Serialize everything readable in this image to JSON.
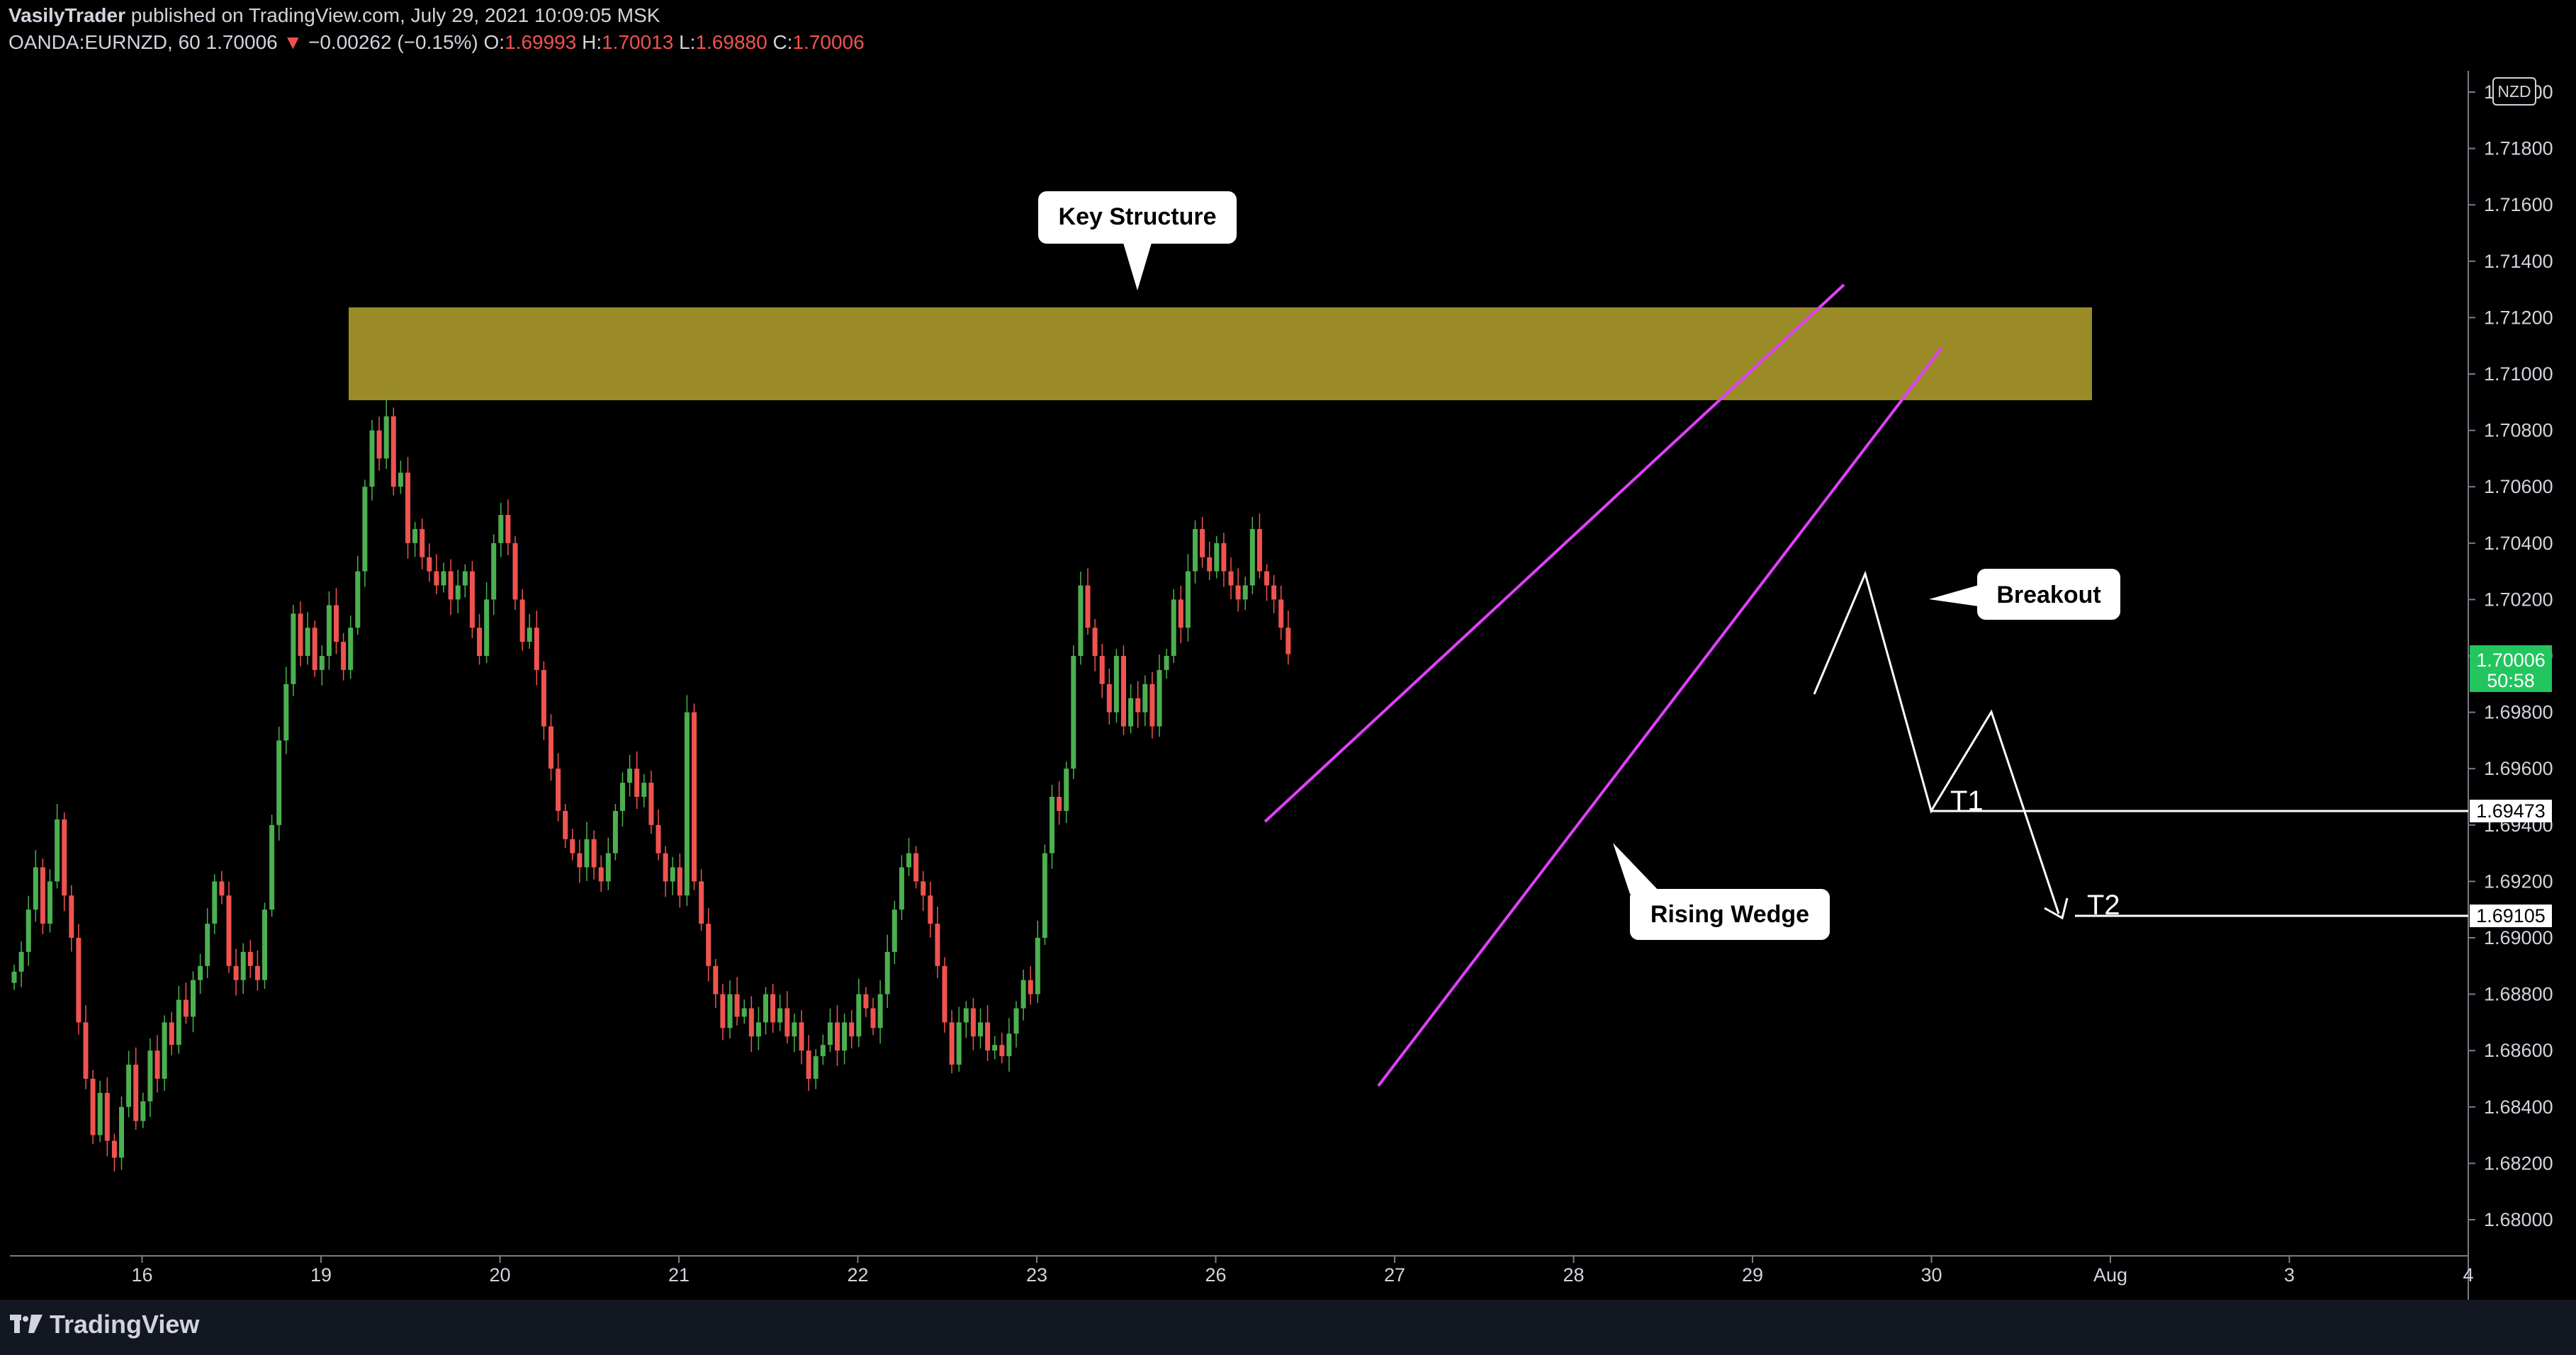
{
  "header": {
    "author": "VasilyTrader",
    "published_text": "published on TradingView.com, July 29, 2021 10:09:05 MSK",
    "symbol": "OANDA:EURNZD, 60",
    "last": "1.70006",
    "change": "−0.00262 (−0.15%)",
    "o_label": "O:",
    "o_value": "1.69993",
    "h_label": "H:",
    "h_value": "1.70013",
    "l_label": "L:",
    "l_value": "1.69880",
    "c_label": "C:",
    "c_value": "1.70006"
  },
  "footer": {
    "brand": "TradingView"
  },
  "colors": {
    "up": "#26a69a",
    "up_bright": "#4caf50",
    "down": "#ef5350",
    "zone": "#9a8b27",
    "wedge": "#e040fb",
    "price_tag": "#22c55e"
  },
  "chart_data": {
    "type": "candlestick",
    "symbol": "OANDA:EURNZD",
    "timeframe": "60",
    "currency": "NZD",
    "y_axis": {
      "ticks": [
        "1.72000",
        "1.71800",
        "1.71600",
        "1.71400",
        "1.71200",
        "1.71000",
        "1.70800",
        "1.70600",
        "1.70400",
        "1.70200",
        "1.70000",
        "1.69800",
        "1.69600",
        "1.69400",
        "1.69200",
        "1.69000",
        "1.68800",
        "1.68600",
        "1.68400",
        "1.68200",
        "1.68000"
      ],
      "range": [
        1.6785,
        1.7205
      ]
    },
    "x_axis": {
      "ticks": [
        {
          "label": "16",
          "index": 5
        },
        {
          "label": "19",
          "index": 30
        },
        {
          "label": "20",
          "index": 55
        },
        {
          "label": "21",
          "index": 80
        },
        {
          "label": "22",
          "index": 105
        },
        {
          "label": "23",
          "index": 130
        },
        {
          "label": "26",
          "index": 155
        },
        {
          "label": "27",
          "index": 180
        },
        {
          "label": "28",
          "index": 205
        },
        {
          "label": "29",
          "index": 230
        },
        {
          "label": "30",
          "index": 255
        },
        {
          "label": "Aug",
          "index": 280
        },
        {
          "label": "3",
          "index": 305
        },
        {
          "label": "4",
          "index": 330
        }
      ]
    },
    "closes": [
      1.6888,
      1.6895,
      1.691,
      1.6925,
      1.6905,
      1.692,
      1.6942,
      1.6915,
      1.69,
      1.687,
      1.685,
      1.683,
      1.6845,
      1.6828,
      1.6822,
      1.684,
      1.6855,
      1.6835,
      1.6842,
      1.686,
      1.685,
      1.687,
      1.6862,
      1.6878,
      1.6872,
      1.6885,
      1.689,
      1.6905,
      1.692,
      1.6915,
      1.689,
      1.6885,
      1.6895,
      1.689,
      1.6885,
      1.691,
      1.694,
      1.697,
      1.699,
      1.7015,
      1.7,
      1.701,
      1.6995,
      1.7,
      1.7018,
      1.7005,
      1.6995,
      1.701,
      1.703,
      1.706,
      1.708,
      1.707,
      1.7085,
      1.706,
      1.7065,
      1.704,
      1.7045,
      1.7035,
      1.703,
      1.7025,
      1.703,
      1.702,
      1.7025,
      1.703,
      1.701,
      1.7,
      1.702,
      1.704,
      1.705,
      1.704,
      1.702,
      1.7005,
      1.701,
      1.6995,
      1.6975,
      1.696,
      1.6945,
      1.6935,
      1.693,
      1.6925,
      1.6935,
      1.6925,
      1.692,
      1.693,
      1.6945,
      1.6955,
      1.696,
      1.695,
      1.6955,
      1.694,
      1.693,
      1.692,
      1.6925,
      1.6915,
      1.698,
      1.692,
      1.6905,
      1.689,
      1.688,
      1.6868,
      1.688,
      1.6872,
      1.6875,
      1.6865,
      1.687,
      1.688,
      1.687,
      1.6875,
      1.6865,
      1.687,
      1.686,
      1.685,
      1.6858,
      1.6862,
      1.687,
      1.686,
      1.687,
      1.6865,
      1.688,
      1.6875,
      1.6868,
      1.688,
      1.6895,
      1.691,
      1.6925,
      1.693,
      1.692,
      1.6915,
      1.6905,
      1.689,
      1.687,
      1.6855,
      1.687,
      1.6875,
      1.6865,
      1.687,
      1.686,
      1.6862,
      1.6858,
      1.6866,
      1.6875,
      1.6885,
      1.688,
      1.69,
      1.693,
      1.695,
      1.6945,
      1.696,
      1.7,
      1.7025,
      1.701,
      1.7,
      1.699,
      1.698,
      1.7,
      1.6975,
      1.6985,
      1.698,
      1.699,
      1.6975,
      1.6995,
      1.7,
      1.702,
      1.701,
      1.703,
      1.7045,
      1.7035,
      1.703,
      1.704,
      1.703,
      1.7025,
      1.702,
      1.7025,
      1.7045,
      1.703,
      1.7025,
      1.702,
      1.701,
      1.70006
    ]
  },
  "annotations": {
    "key_structure": "Key Structure",
    "rising_wedge": "Rising Wedge",
    "breakout": "Breakout",
    "t1": "T1",
    "t2": "T2",
    "level_t1": "1.69473",
    "level_t2": "1.69105",
    "price_tag_value": "1.70006",
    "price_tag_timer": "50:58",
    "currency_badge": "NZD"
  }
}
